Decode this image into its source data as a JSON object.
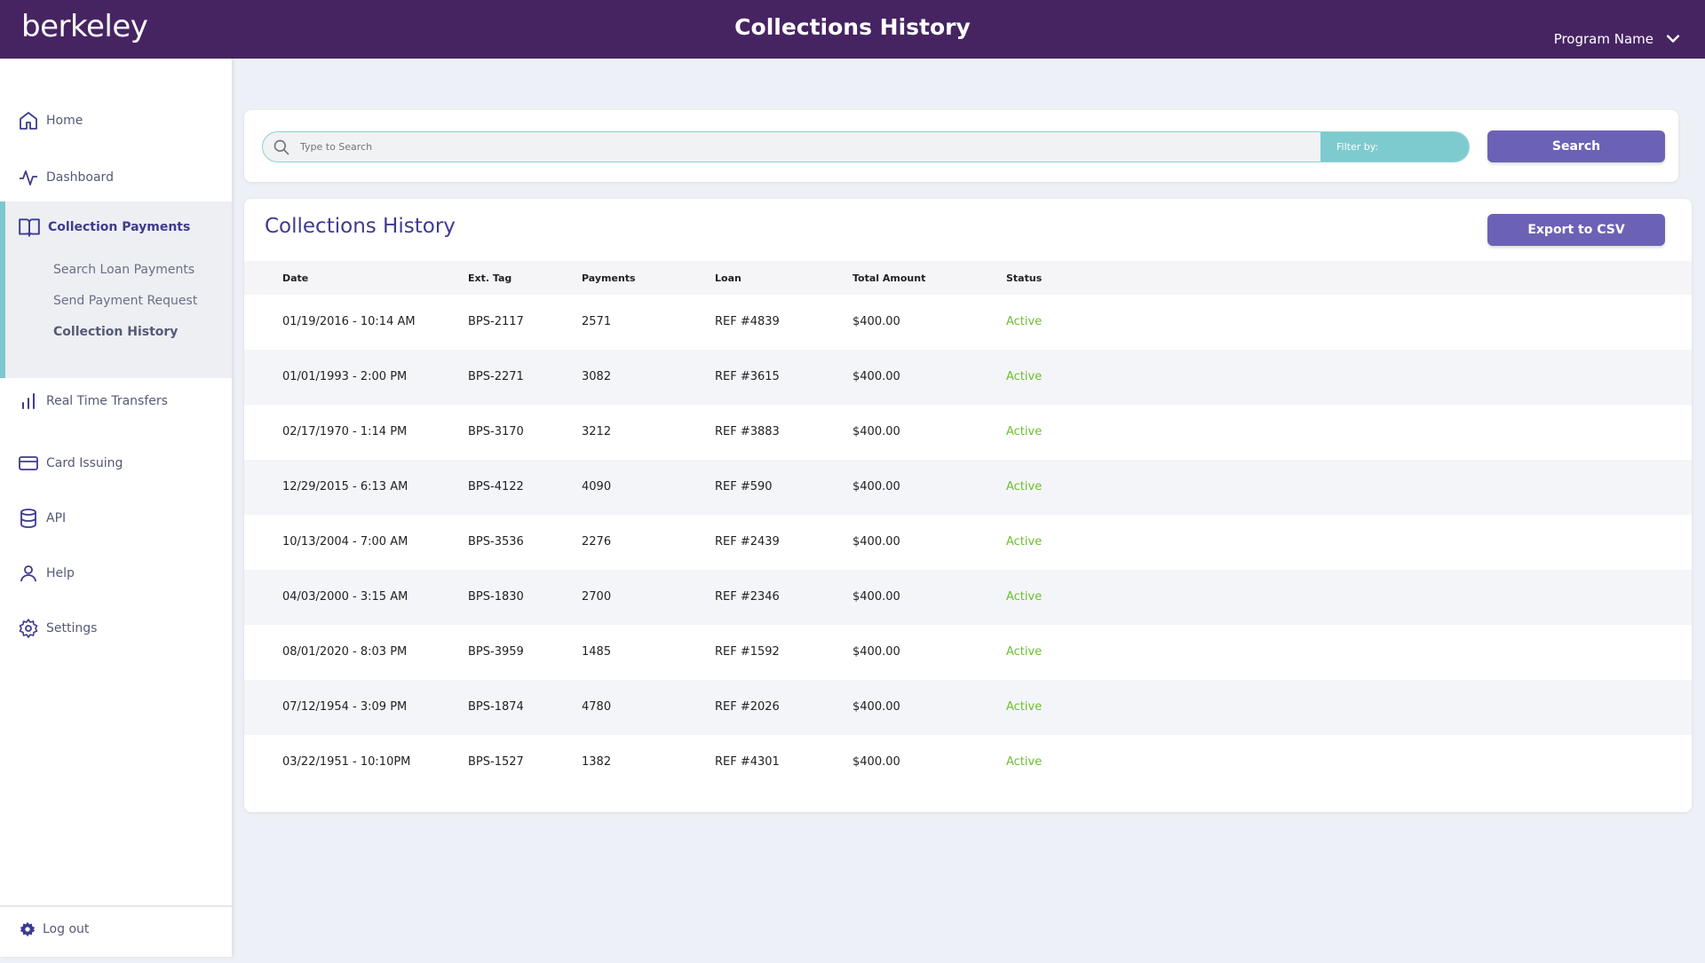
{
  "header": {
    "logo": "berkeley",
    "title": "Collections History",
    "program_label": "Program Name"
  },
  "sidebar": {
    "home": "Home",
    "dashboard": "Dashboard",
    "collection_payments": "Collection Payments",
    "sub_items": [
      "Search Loan Payments",
      "Send Payment Request",
      "Collection History"
    ],
    "real_time_transfers": "Real Time Transfers",
    "card_issuing": "Card Issuing",
    "api": "API",
    "help": "Help",
    "settings": "Settings",
    "logout": "Log out"
  },
  "search": {
    "placeholder": "Type to Search",
    "filter_label": "Filter by:",
    "button": "Search"
  },
  "table": {
    "title": "Collections History",
    "export_label": "Export to CSV",
    "columns": [
      "Date",
      "Ext. Tag",
      "Payments",
      "Loan",
      "Total Amount",
      "Status"
    ],
    "rows": [
      {
        "date": "01/19/2016 - 10:14 AM",
        "tag": "BPS-2117",
        "payments": "2571",
        "loan": "REF #4839",
        "amount": "$400.00",
        "status": "Active"
      },
      {
        "date": "01/01/1993 - 2:00 PM",
        "tag": "BPS-2271",
        "payments": "3082",
        "loan": "REF #3615",
        "amount": "$400.00",
        "status": "Active"
      },
      {
        "date": "02/17/1970 - 1:14 PM",
        "tag": "BPS-3170",
        "payments": "3212",
        "loan": "REF #3883",
        "amount": "$400.00",
        "status": "Active"
      },
      {
        "date": "12/29/2015 - 6:13 AM",
        "tag": "BPS-4122",
        "payments": "4090",
        "loan": "REF #590",
        "amount": "$400.00",
        "status": "Active"
      },
      {
        "date": "10/13/2004 - 7:00 AM",
        "tag": "BPS-3536",
        "payments": "2276",
        "loan": "REF #2439",
        "amount": "$400.00",
        "status": "Active"
      },
      {
        "date": "04/03/2000 - 3:15 AM",
        "tag": "BPS-1830",
        "payments": "2700",
        "loan": "REF #2346",
        "amount": "$400.00",
        "status": "Active"
      },
      {
        "date": "08/01/2020 - 8:03 PM",
        "tag": "BPS-3959",
        "payments": "1485",
        "loan": "REF #1592",
        "amount": "$400.00",
        "status": "Active"
      },
      {
        "date": "07/12/1954 - 3:09 PM",
        "tag": "BPS-1874",
        "payments": "4780",
        "loan": "REF #2026",
        "amount": "$400.00",
        "status": "Active"
      },
      {
        "date": "03/22/1951 - 10:10PM",
        "tag": "BPS-1527",
        "payments": "1382",
        "loan": "REF #4301",
        "amount": "$400.00",
        "status": "Active"
      }
    ]
  },
  "colors": {
    "header_bg": "#462462",
    "accent": "#6b62b6",
    "teal": "#7ecbcf",
    "status_active": "#6cbf2d"
  }
}
